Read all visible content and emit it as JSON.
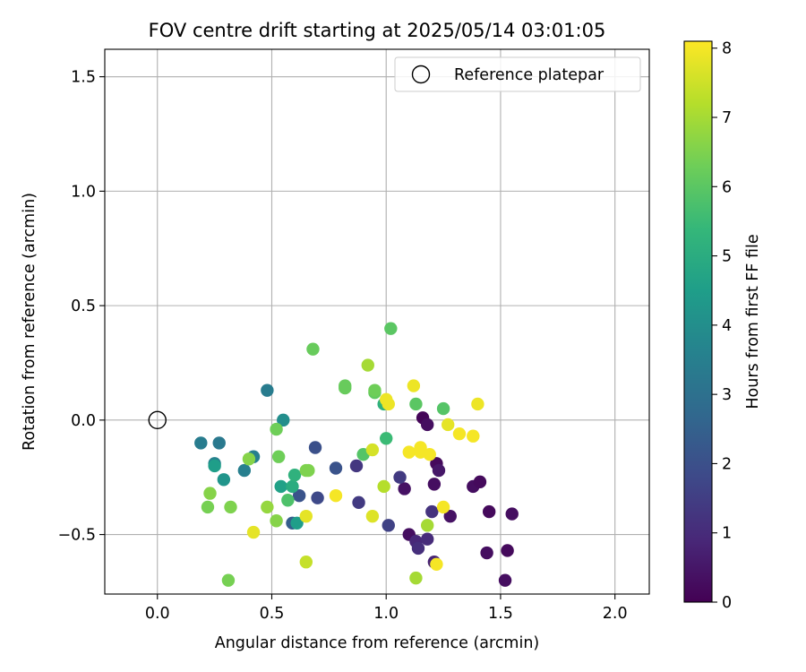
{
  "chart_data": {
    "type": "scatter",
    "title": "FOV centre drift starting at 2025/05/14 03:01:05",
    "xlabel": "Angular distance from reference (arcmin)",
    "ylabel": "Rotation from reference (arcmin)",
    "xlim": [
      -0.23,
      2.15
    ],
    "ylim": [
      -0.76,
      1.62
    ],
    "xticks": [
      0.0,
      0.5,
      1.0,
      1.5,
      2.0
    ],
    "xtick_labels": [
      "0.0",
      "0.5",
      "1.0",
      "1.5",
      "2.0"
    ],
    "yticks": [
      -0.5,
      0.0,
      0.5,
      1.0,
      1.5
    ],
    "ytick_labels": [
      "−0.5",
      "0.0",
      "0.5",
      "1.0",
      "1.5"
    ],
    "grid": true,
    "legend": {
      "position": "top-right",
      "entries": [
        {
          "label": "Reference platepar",
          "marker": "open-circle"
        }
      ]
    },
    "reference_point": {
      "x": 0.0,
      "y": 0.0
    },
    "colorbar": {
      "label": "Hours from first FF file",
      "colormap": "viridis",
      "range": [
        0,
        8.1
      ],
      "ticks": [
        0,
        1,
        2,
        3,
        4,
        5,
        6,
        7,
        8
      ],
      "tick_labels": [
        "0",
        "1",
        "2",
        "3",
        "4",
        "5",
        "6",
        "7",
        "8"
      ],
      "stops": [
        "#440154",
        "#482878",
        "#3e4989",
        "#31688e",
        "#26828e",
        "#1f9e89",
        "#35b779",
        "#6ece58",
        "#b5de2b",
        "#fde725"
      ]
    },
    "points": [
      {
        "x": 1.16,
        "y": 0.01,
        "c": 0.1
      },
      {
        "x": 1.18,
        "y": -0.02,
        "c": 0.3
      },
      {
        "x": 1.22,
        "y": -0.19,
        "c": 0.2
      },
      {
        "x": 1.23,
        "y": -0.22,
        "c": 0.5
      },
      {
        "x": 1.21,
        "y": -0.28,
        "c": 0.3
      },
      {
        "x": 1.08,
        "y": -0.3,
        "c": 0.4
      },
      {
        "x": 1.06,
        "y": -0.25,
        "c": 1.4
      },
      {
        "x": 1.2,
        "y": -0.4,
        "c": 1.2
      },
      {
        "x": 1.28,
        "y": -0.42,
        "c": 0.4
      },
      {
        "x": 1.38,
        "y": -0.29,
        "c": 0.3
      },
      {
        "x": 1.41,
        "y": -0.27,
        "c": 0.2
      },
      {
        "x": 1.45,
        "y": -0.4,
        "c": 0.2
      },
      {
        "x": 1.55,
        "y": -0.41,
        "c": 0.3
      },
      {
        "x": 1.44,
        "y": -0.58,
        "c": 0.3
      },
      {
        "x": 1.53,
        "y": -0.57,
        "c": 0.2
      },
      {
        "x": 1.52,
        "y": -0.7,
        "c": 0.3
      },
      {
        "x": 1.1,
        "y": -0.5,
        "c": 0.3
      },
      {
        "x": 1.13,
        "y": -0.53,
        "c": 0.9
      },
      {
        "x": 1.14,
        "y": -0.56,
        "c": 1.1
      },
      {
        "x": 1.18,
        "y": -0.52,
        "c": 1.0
      },
      {
        "x": 1.21,
        "y": -0.62,
        "c": 0.8
      },
      {
        "x": 1.01,
        "y": -0.46,
        "c": 1.6
      },
      {
        "x": 0.88,
        "y": -0.36,
        "c": 1.4
      },
      {
        "x": 0.87,
        "y": -0.2,
        "c": 1.3
      },
      {
        "x": 0.78,
        "y": -0.21,
        "c": 2.1
      },
      {
        "x": 0.69,
        "y": -0.12,
        "c": 2.0
      },
      {
        "x": 0.7,
        "y": -0.34,
        "c": 1.8
      },
      {
        "x": 0.62,
        "y": -0.33,
        "c": 2.1
      },
      {
        "x": 0.59,
        "y": -0.45,
        "c": 2.4
      },
      {
        "x": 0.48,
        "y": 0.13,
        "c": 3.4
      },
      {
        "x": 0.55,
        "y": 0.0,
        "c": 4.0
      },
      {
        "x": 0.42,
        "y": -0.16,
        "c": 3.5
      },
      {
        "x": 0.38,
        "y": -0.22,
        "c": 3.5
      },
      {
        "x": 0.19,
        "y": -0.1,
        "c": 3.4
      },
      {
        "x": 0.27,
        "y": -0.1,
        "c": 3.3
      },
      {
        "x": 0.25,
        "y": -0.19,
        "c": 3.6
      },
      {
        "x": 0.25,
        "y": -0.2,
        "c": 4.5
      },
      {
        "x": 0.29,
        "y": -0.26,
        "c": 4.2
      },
      {
        "x": 0.54,
        "y": -0.29,
        "c": 4.6
      },
      {
        "x": 0.59,
        "y": -0.29,
        "c": 5.0
      },
      {
        "x": 0.6,
        "y": -0.24,
        "c": 5.2
      },
      {
        "x": 0.61,
        "y": -0.45,
        "c": 4.5
      },
      {
        "x": 0.57,
        "y": -0.35,
        "c": 5.8
      },
      {
        "x": 0.9,
        "y": -0.15,
        "c": 5.9
      },
      {
        "x": 1.0,
        "y": -0.08,
        "c": 5.5
      },
      {
        "x": 0.99,
        "y": 0.07,
        "c": 5.2
      },
      {
        "x": 1.02,
        "y": 0.4,
        "c": 6.0
      },
      {
        "x": 1.13,
        "y": 0.07,
        "c": 6.0
      },
      {
        "x": 1.25,
        "y": 0.05,
        "c": 5.9
      },
      {
        "x": 0.95,
        "y": 0.12,
        "c": 6.1
      },
      {
        "x": 0.95,
        "y": 0.13,
        "c": 6.3
      },
      {
        "x": 0.82,
        "y": 0.15,
        "c": 6.2
      },
      {
        "x": 0.82,
        "y": 0.14,
        "c": 6.2
      },
      {
        "x": 0.68,
        "y": 0.31,
        "c": 6.2
      },
      {
        "x": 0.52,
        "y": -0.04,
        "c": 6.3
      },
      {
        "x": 0.53,
        "y": -0.16,
        "c": 6.3
      },
      {
        "x": 0.65,
        "y": -0.22,
        "c": 6.5
      },
      {
        "x": 0.66,
        "y": -0.22,
        "c": 6.5
      },
      {
        "x": 0.4,
        "y": -0.17,
        "c": 6.6
      },
      {
        "x": 0.23,
        "y": -0.32,
        "c": 6.6
      },
      {
        "x": 0.22,
        "y": -0.38,
        "c": 6.4
      },
      {
        "x": 0.32,
        "y": -0.38,
        "c": 6.5
      },
      {
        "x": 0.48,
        "y": -0.38,
        "c": 6.8
      },
      {
        "x": 0.52,
        "y": -0.44,
        "c": 6.6
      },
      {
        "x": 0.31,
        "y": -0.7,
        "c": 6.4
      },
      {
        "x": 0.92,
        "y": 0.24,
        "c": 7.0
      },
      {
        "x": 0.99,
        "y": -0.29,
        "c": 7.2
      },
      {
        "x": 1.18,
        "y": -0.46,
        "c": 7.0
      },
      {
        "x": 1.13,
        "y": -0.69,
        "c": 7.0
      },
      {
        "x": 0.65,
        "y": -0.62,
        "c": 7.4
      },
      {
        "x": 0.65,
        "y": -0.42,
        "c": 7.8
      },
      {
        "x": 0.78,
        "y": -0.33,
        "c": 8.0
      },
      {
        "x": 0.94,
        "y": -0.42,
        "c": 7.7
      },
      {
        "x": 0.42,
        "y": -0.49,
        "c": 7.8
      },
      {
        "x": 0.94,
        "y": -0.13,
        "c": 7.6
      },
      {
        "x": 1.0,
        "y": 0.09,
        "c": 7.9
      },
      {
        "x": 1.01,
        "y": 0.07,
        "c": 7.9
      },
      {
        "x": 1.12,
        "y": 0.15,
        "c": 7.9
      },
      {
        "x": 1.1,
        "y": -0.14,
        "c": 8.0
      },
      {
        "x": 1.15,
        "y": -0.12,
        "c": 8.0
      },
      {
        "x": 1.15,
        "y": -0.14,
        "c": 8.0
      },
      {
        "x": 1.19,
        "y": -0.15,
        "c": 8.0
      },
      {
        "x": 1.27,
        "y": -0.02,
        "c": 7.8
      },
      {
        "x": 1.32,
        "y": -0.06,
        "c": 8.0
      },
      {
        "x": 1.38,
        "y": -0.07,
        "c": 8.0
      },
      {
        "x": 1.4,
        "y": 0.07,
        "c": 7.9
      },
      {
        "x": 1.25,
        "y": -0.38,
        "c": 8.0
      },
      {
        "x": 1.22,
        "y": -0.63,
        "c": 8.0
      }
    ]
  }
}
